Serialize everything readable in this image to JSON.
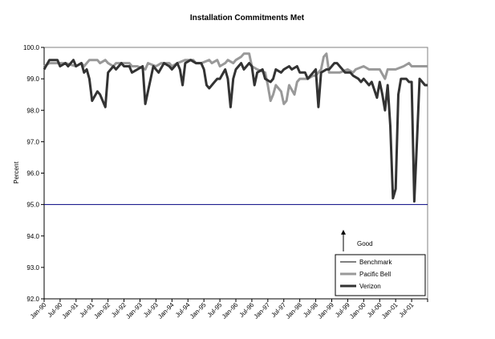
{
  "chart_data": {
    "type": "line",
    "title": "Installation Commitments Met",
    "xlabel": "",
    "ylabel": "Percent",
    "ylim": [
      92.0,
      100.0
    ],
    "yticks": [
      "92.0",
      "93.0",
      "94.0",
      "95.0",
      "96.0",
      "97.0",
      "98.0",
      "99.0",
      "100.0"
    ],
    "x_unit": "months since Jan-90",
    "xlim": [
      0,
      144
    ],
    "xtick_labels": [
      "Jan-90",
      "Jul-90",
      "Jan-91",
      "Jul-91",
      "Jan-92",
      "Jul-92",
      "Jan-93",
      "Jul-93",
      "Jan-94",
      "Jul-94",
      "Jan-95",
      "Jul-95",
      "Jan-96",
      "Jul-96",
      "Jan-97",
      "Jul-97",
      "Jan-98",
      "Jul-98",
      "Jan-99",
      "Jul-99",
      "Jan-00",
      "Jul-00",
      "Jan-01",
      "Jul-01"
    ],
    "grid": false,
    "legend_position": "bottom-right",
    "annotation": "Good",
    "series": [
      {
        "name": "Benchmark",
        "color": "#000080",
        "constant": 95.0
      },
      {
        "name": "Pacific Bell",
        "color": "#999999",
        "points": [
          [
            0,
            99.4
          ],
          [
            2,
            99.5
          ],
          [
            8,
            99.5
          ],
          [
            12,
            99.4
          ],
          [
            14,
            99.5
          ],
          [
            15,
            99.4
          ],
          [
            17,
            99.6
          ],
          [
            20,
            99.6
          ],
          [
            21,
            99.5
          ],
          [
            23,
            99.6
          ],
          [
            24,
            99.5
          ],
          [
            26,
            99.4
          ],
          [
            27,
            99.5
          ],
          [
            32,
            99.5
          ],
          [
            33,
            99.4
          ],
          [
            35,
            99.4
          ],
          [
            38,
            99.3
          ],
          [
            39,
            99.5
          ],
          [
            42,
            99.4
          ],
          [
            44,
            99.5
          ],
          [
            47,
            99.5
          ],
          [
            48,
            99.4
          ],
          [
            50,
            99.5
          ],
          [
            53,
            99.6
          ],
          [
            56,
            99.6
          ],
          [
            57,
            99.5
          ],
          [
            59,
            99.5
          ],
          [
            62,
            99.6
          ],
          [
            63,
            99.5
          ],
          [
            65,
            99.6
          ],
          [
            66,
            99.4
          ],
          [
            68,
            99.5
          ],
          [
            69,
            99.6
          ],
          [
            71,
            99.5
          ],
          [
            72,
            99.6
          ],
          [
            74,
            99.7
          ],
          [
            75,
            99.8
          ],
          [
            77,
            99.8
          ],
          [
            78,
            99.4
          ],
          [
            80,
            99.3
          ],
          [
            83,
            99.2
          ],
          [
            84,
            98.8
          ],
          [
            85,
            98.3
          ],
          [
            86,
            98.5
          ],
          [
            87,
            98.8
          ],
          [
            89,
            98.6
          ],
          [
            90,
            98.2
          ],
          [
            91,
            98.3
          ],
          [
            92,
            98.8
          ],
          [
            94,
            98.5
          ],
          [
            95,
            98.9
          ],
          [
            96,
            99.0
          ],
          [
            99,
            99.0
          ],
          [
            101,
            99.1
          ],
          [
            102,
            99.1
          ],
          [
            104,
            99.3
          ],
          [
            105,
            99.7
          ],
          [
            106,
            99.8
          ],
          [
            107,
            99.2
          ],
          [
            108,
            99.2
          ],
          [
            111,
            99.2
          ],
          [
            114,
            99.3
          ],
          [
            116,
            99.2
          ],
          [
            117,
            99.3
          ],
          [
            120,
            99.4
          ],
          [
            122,
            99.3
          ],
          [
            126,
            99.3
          ],
          [
            128,
            99.0
          ],
          [
            129,
            99.3
          ],
          [
            132,
            99.3
          ],
          [
            135,
            99.4
          ],
          [
            137,
            99.5
          ],
          [
            138,
            99.4
          ],
          [
            144,
            99.4
          ]
        ]
      },
      {
        "name": "Verizon",
        "color": "#333333",
        "points": [
          [
            0,
            99.3
          ],
          [
            2,
            99.6
          ],
          [
            5,
            99.6
          ],
          [
            6,
            99.4
          ],
          [
            8,
            99.5
          ],
          [
            9,
            99.4
          ],
          [
            11,
            99.6
          ],
          [
            12,
            99.4
          ],
          [
            14,
            99.5
          ],
          [
            15,
            99.2
          ],
          [
            16,
            99.3
          ],
          [
            17,
            99.0
          ],
          [
            18,
            98.3
          ],
          [
            20,
            98.6
          ],
          [
            21,
            98.5
          ],
          [
            23,
            98.1
          ],
          [
            24,
            99.2
          ],
          [
            26,
            99.4
          ],
          [
            27,
            99.3
          ],
          [
            29,
            99.5
          ],
          [
            30,
            99.4
          ],
          [
            32,
            99.4
          ],
          [
            33,
            99.2
          ],
          [
            35,
            99.3
          ],
          [
            37,
            99.4
          ],
          [
            38,
            98.2
          ],
          [
            40,
            99.0
          ],
          [
            41,
            99.4
          ],
          [
            43,
            99.2
          ],
          [
            45,
            99.5
          ],
          [
            47,
            99.4
          ],
          [
            48,
            99.3
          ],
          [
            50,
            99.5
          ],
          [
            51,
            99.3
          ],
          [
            52,
            98.8
          ],
          [
            53,
            99.5
          ],
          [
            55,
            99.6
          ],
          [
            57,
            99.5
          ],
          [
            59,
            99.5
          ],
          [
            60,
            99.3
          ],
          [
            61,
            98.8
          ],
          [
            62,
            98.7
          ],
          [
            64,
            98.9
          ],
          [
            65,
            99.0
          ],
          [
            66,
            99.0
          ],
          [
            68,
            99.3
          ],
          [
            69,
            99.0
          ],
          [
            70,
            98.1
          ],
          [
            71,
            99.0
          ],
          [
            72,
            99.3
          ],
          [
            74,
            99.5
          ],
          [
            75,
            99.3
          ],
          [
            77,
            99.5
          ],
          [
            78,
            99.4
          ],
          [
            79,
            98.8
          ],
          [
            80,
            99.2
          ],
          [
            82,
            99.3
          ],
          [
            83,
            99.0
          ],
          [
            85,
            98.9
          ],
          [
            86,
            99.0
          ],
          [
            87,
            99.3
          ],
          [
            89,
            99.2
          ],
          [
            90,
            99.3
          ],
          [
            92,
            99.4
          ],
          [
            93,
            99.3
          ],
          [
            95,
            99.4
          ],
          [
            96,
            99.2
          ],
          [
            98,
            99.2
          ],
          [
            99,
            99.0
          ],
          [
            101,
            99.2
          ],
          [
            102,
            99.3
          ],
          [
            103,
            98.1
          ],
          [
            104,
            99.2
          ],
          [
            106,
            99.3
          ],
          [
            107,
            99.3
          ],
          [
            109,
            99.5
          ],
          [
            110,
            99.5
          ],
          [
            112,
            99.3
          ],
          [
            113,
            99.2
          ],
          [
            115,
            99.2
          ],
          [
            116,
            99.1
          ],
          [
            118,
            99.0
          ],
          [
            119,
            98.9
          ],
          [
            120,
            99.0
          ],
          [
            122,
            98.8
          ],
          [
            123,
            98.9
          ],
          [
            125,
            98.4
          ],
          [
            126,
            98.9
          ],
          [
            127,
            98.5
          ],
          [
            128,
            98.0
          ],
          [
            129,
            98.8
          ],
          [
            130,
            97.5
          ],
          [
            131,
            95.2
          ],
          [
            132,
            95.5
          ],
          [
            133,
            98.5
          ],
          [
            134,
            99.0
          ],
          [
            136,
            99.0
          ],
          [
            137,
            98.9
          ],
          [
            138,
            98.9
          ],
          [
            139,
            95.1
          ],
          [
            140,
            97.0
          ],
          [
            141,
            99.0
          ],
          [
            142,
            98.9
          ],
          [
            143,
            98.8
          ],
          [
            144,
            98.8
          ]
        ]
      }
    ]
  }
}
